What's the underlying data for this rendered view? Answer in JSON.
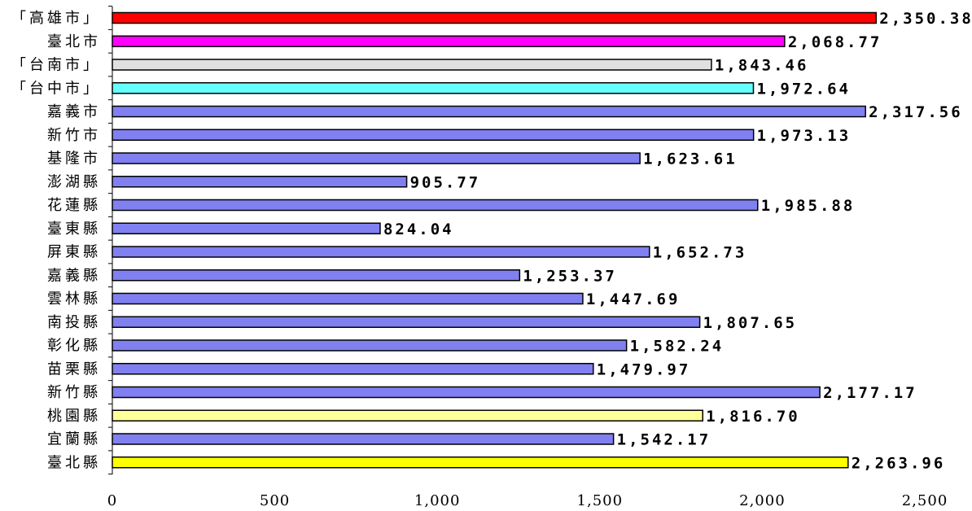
{
  "chart_data": {
    "type": "bar",
    "orientation": "horizontal",
    "title": "",
    "xlabel": "",
    "ylabel": "",
    "xlim": [
      0,
      2500
    ],
    "x_ticks": [
      0,
      500,
      1000,
      1500,
      2000,
      2500
    ],
    "x_tick_labels": [
      "0",
      "500",
      "1,000",
      "1,500",
      "2,000",
      "2,500"
    ],
    "grid": false,
    "categories": [
      "「高雄市」",
      "臺北市",
      "「台南市」",
      "「台中市」",
      "嘉義市",
      "新竹市",
      "基隆市",
      "澎湖縣",
      "花蓮縣",
      "臺東縣",
      "屏東縣",
      "嘉義縣",
      "雲林縣",
      "南投縣",
      "彰化縣",
      "苗栗縣",
      "新竹縣",
      "桃園縣",
      "宜蘭縣",
      "臺北縣"
    ],
    "values": [
      2350.38,
      2068.77,
      1843.46,
      1972.64,
      2317.56,
      1973.13,
      1623.61,
      905.77,
      1985.88,
      824.04,
      1652.73,
      1253.37,
      1447.69,
      1807.65,
      1582.24,
      1479.97,
      2177.17,
      1816.7,
      1542.17,
      2263.96
    ],
    "value_labels": [
      "2,350.38",
      "2,068.77",
      "1,843.46",
      "1,972.64",
      "2,317.56",
      "1,973.13",
      "1,623.61",
      "905.77",
      "1,985.88",
      "824.04",
      "1,652.73",
      "1,253.37",
      "1,447.69",
      "1,807.65",
      "1,582.24",
      "1,479.97",
      "2,177.17",
      "1,816.70",
      "1,542.17",
      "2,263.96"
    ],
    "colors": [
      "#ff0000",
      "#ff00ff",
      "#e0e0e0",
      "#66ffff",
      "#8080f0",
      "#8080f0",
      "#8080f0",
      "#8080f0",
      "#8080f0",
      "#8080f0",
      "#8080f0",
      "#8080f0",
      "#8080f0",
      "#8080f0",
      "#8080f0",
      "#8080f0",
      "#8080f0",
      "#ffff99",
      "#8080f0",
      "#ffff00"
    ]
  }
}
